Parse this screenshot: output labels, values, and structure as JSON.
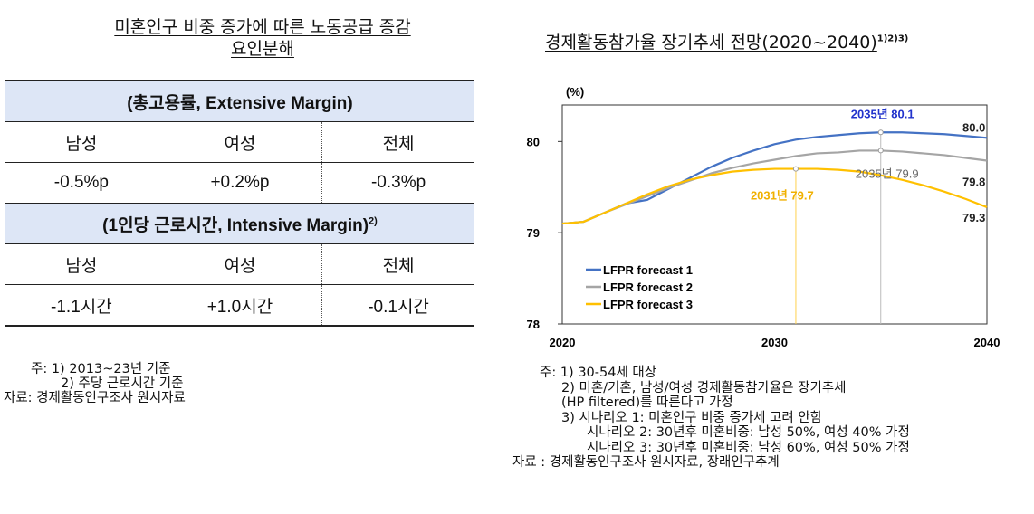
{
  "left": {
    "title_line1": "미혼인구 비중 증가에 따른 노동공급 증감",
    "title_line2": "요인분해",
    "extensive_header": "(총고용률, Extensive Margin)",
    "col_labels": [
      "남성",
      "여성",
      "전체"
    ],
    "extensive_values": [
      "-0.5%p",
      "+0.2%p",
      "-0.3%p"
    ],
    "intensive_header": "(1인당 근로시간, Intensive Margin)",
    "intensive_header_sup": "2)",
    "intensive_values": [
      "-1.1시간",
      "+1.0시간",
      "-0.1시간"
    ],
    "notes": [
      "주: 1) 2013~23년 기준",
      "2) 주당 근로시간 기준",
      "자료: 경제활동인구조사 원시자료"
    ]
  },
  "right": {
    "title": "경제활동참가율 장기추세 전망(2020~2040)",
    "title_sup": "1)2)3)",
    "notes": [
      "주: 1) 30-54세 대상",
      "2) 미혼/기혼, 남성/여성 경제활동참가율은 장기추세",
      "(HP filtered)를 따른다고 가정",
      "3) 시나리오 1: 미혼인구 비중 증가세 고려 안함",
      "시나리오 2: 30년후 미혼비중: 남성 50%, 여성 40% 가정",
      "시나리오 3: 30년후 미혼비중: 남성 60%, 여성 50% 가정",
      "자료 : 경제활동인구조사 원시자료, 장래인구추계"
    ]
  },
  "chart_data": {
    "type": "line",
    "ylabel": "(%)",
    "xlim": [
      2020,
      2040
    ],
    "ylim": [
      78,
      80.4
    ],
    "x_ticks": [
      2020,
      2030,
      2040
    ],
    "y_ticks": [
      78,
      79,
      80
    ],
    "x_tick_labels": [
      "2020",
      "2030",
      "2040"
    ],
    "y_tick_labels": [
      "78",
      "79",
      "80"
    ],
    "legend_position": "bottom-left",
    "x": [
      2020,
      2021,
      2022,
      2023,
      2024,
      2025,
      2026,
      2027,
      2028,
      2029,
      2030,
      2031,
      2032,
      2033,
      2034,
      2035,
      2036,
      2037,
      2038,
      2039,
      2040
    ],
    "series": [
      {
        "name": "LFPR forecast 1",
        "color": "#4472c4",
        "values": [
          79.1,
          79.12,
          79.22,
          79.32,
          79.36,
          79.48,
          79.6,
          79.72,
          79.82,
          79.9,
          79.97,
          80.02,
          80.05,
          80.07,
          80.09,
          80.1,
          80.1,
          80.09,
          80.08,
          80.06,
          80.04
        ]
      },
      {
        "name": "LFPR forecast 2",
        "color": "#a5a5a5",
        "values": [
          79.1,
          79.12,
          79.22,
          79.31,
          79.4,
          79.49,
          79.57,
          79.65,
          79.71,
          79.76,
          79.8,
          79.84,
          79.87,
          79.88,
          79.9,
          79.9,
          79.89,
          79.87,
          79.85,
          79.82,
          79.79
        ]
      },
      {
        "name": "LFPR forecast 3",
        "color": "#ffc000",
        "values": [
          79.1,
          79.12,
          79.22,
          79.32,
          79.42,
          79.51,
          79.58,
          79.63,
          79.67,
          79.69,
          79.7,
          79.7,
          79.7,
          79.69,
          79.67,
          79.63,
          79.58,
          79.52,
          79.45,
          79.37,
          79.28
        ]
      }
    ],
    "annotations": [
      {
        "text": "2035년 80.1",
        "x": 2035,
        "y": 80.1,
        "color": "#2233cc",
        "bold": true
      },
      {
        "text": "2035년 79.9",
        "x": 2035,
        "y": 79.9,
        "color": "#666666",
        "bold": false
      },
      {
        "text": "2031년 79.7",
        "x": 2031,
        "y": 79.7,
        "color": "#f0b000",
        "bold": true
      },
      {
        "text": "80.0",
        "x": 2040,
        "y": 80.04,
        "color": "#222222",
        "bold": true
      },
      {
        "text": "79.8",
        "x": 2040,
        "y": 79.79,
        "color": "#222222",
        "bold": true
      },
      {
        "text": "79.3",
        "x": 2040,
        "y": 79.28,
        "color": "#222222",
        "bold": true
      }
    ]
  }
}
